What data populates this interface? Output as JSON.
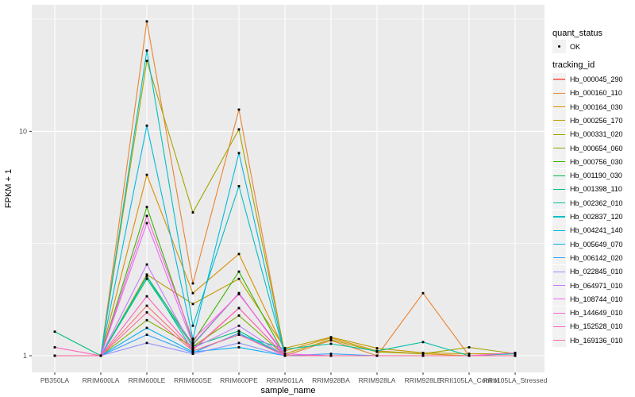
{
  "chart_data": {
    "type": "line",
    "title": "",
    "xlabel": "sample_name",
    "ylabel": "FPKM + 1",
    "y_scale": "log10",
    "ylim": [
      0.85,
      36
    ],
    "y_major_ticks": [
      1,
      10
    ],
    "y_minor_gridlines": [
      3.1623,
      31.623
    ],
    "grid": true,
    "panel_bg": "#EBEBEB",
    "grid_color": "#FFFFFF",
    "tick_label_color": "#4D4D4D",
    "point_color": "#000000",
    "categories": [
      "PB350LA",
      "RRIM600LA",
      "RRIM600LE",
      "RRIM600SE",
      "RRIM600PE",
      "RRIM901LA",
      "RRIM928BA",
      "RRIM928LA",
      "RRIM928LE",
      "RRII105LA_Control",
      "RRII105LA_Stressed"
    ],
    "legend": {
      "quant_status_title": "quant_status",
      "quant_status_items": [
        "OK"
      ],
      "tracking_id_title": "tracking_id"
    },
    "series": [
      {
        "name": "Hb_000045_290",
        "color": "#F8766D",
        "values": [
          1,
          1,
          1.67,
          1.06,
          1.63,
          1,
          1,
          1,
          1,
          1,
          1
        ]
      },
      {
        "name": "Hb_000160_110",
        "color": "#EA8331",
        "values": [
          1,
          1,
          30.9,
          2.1,
          12.5,
          1,
          1.17,
          1,
          1.9,
          1,
          1
        ]
      },
      {
        "name": "Hb_000164_030",
        "color": "#D89000",
        "values": [
          1,
          1,
          6.4,
          1.9,
          2.84,
          1.05,
          1.2,
          1.05,
          1.02,
          1,
          1
        ]
      },
      {
        "name": "Hb_000256_170",
        "color": "#C09B00",
        "values": [
          1,
          1,
          2.3,
          1.7,
          2.2,
          1.08,
          1.21,
          1.08,
          1.03,
          1.02,
          1.02
        ]
      },
      {
        "name": "Hb_000331_020",
        "color": "#A3A500",
        "values": [
          1,
          1,
          20.6,
          4.35,
          10.2,
          1.02,
          1.18,
          1.04,
          1.02,
          1.09,
          1.02
        ]
      },
      {
        "name": "Hb_000654_060",
        "color": "#7CAE00",
        "values": [
          1,
          1,
          1.44,
          1.1,
          1.51,
          1,
          1,
          1,
          1,
          1,
          1
        ]
      },
      {
        "name": "Hb_000756_030",
        "color": "#39B600",
        "values": [
          1,
          1,
          4.6,
          1.15,
          2.37,
          1,
          1,
          1,
          1,
          1,
          1
        ]
      },
      {
        "name": "Hb_001190_030",
        "color": "#00BB4E",
        "values": [
          1,
          1,
          2.26,
          1.12,
          1.9,
          1,
          1,
          1,
          1,
          1,
          1
        ]
      },
      {
        "name": "Hb_001398_110",
        "color": "#00BF7D",
        "values": [
          1.28,
          1,
          2.2,
          1.1,
          1.29,
          1,
          1,
          1,
          1,
          1,
          1
        ]
      },
      {
        "name": "Hb_002362_010",
        "color": "#00C1A3",
        "values": [
          1,
          1,
          2.26,
          1.05,
          1.24,
          1.07,
          1.13,
          1.05,
          1.15,
          1,
          1.02
        ]
      },
      {
        "name": "Hb_002837_120",
        "color": "#00BFC4",
        "values": [
          1,
          1,
          22.9,
          1.36,
          5.7,
          1,
          1,
          1,
          1,
          1,
          1
        ]
      },
      {
        "name": "Hb_004241_140",
        "color": "#00BAE0",
        "values": [
          1,
          1,
          10.6,
          1.19,
          8.0,
          1,
          1,
          1,
          1,
          1,
          1
        ]
      },
      {
        "name": "Hb_005649_070",
        "color": "#00B0F6",
        "values": [
          1,
          1,
          1.33,
          1.04,
          1.09,
          1,
          1,
          1,
          1,
          1,
          1
        ]
      },
      {
        "name": "Hb_006142_020",
        "color": "#35A2FF",
        "values": [
          1,
          1,
          1.24,
          1.03,
          1.26,
          1,
          1.02,
          1,
          1,
          1,
          1
        ]
      },
      {
        "name": "Hb_022845_010",
        "color": "#9590FF",
        "values": [
          1,
          1,
          1.14,
          1.02,
          1.14,
          1,
          1,
          1,
          1,
          1,
          1
        ]
      },
      {
        "name": "Hb_064971_010",
        "color": "#C77CFF",
        "values": [
          1,
          1,
          2.55,
          1.08,
          1.36,
          1,
          1,
          1,
          1,
          1,
          1
        ]
      },
      {
        "name": "Hb_108744_010",
        "color": "#E76BF3",
        "values": [
          1,
          1,
          3.9,
          1.13,
          1.9,
          1,
          1,
          1,
          1,
          1,
          1
        ]
      },
      {
        "name": "Hb_144649_010",
        "color": "#FA62DB",
        "values": [
          1,
          1,
          4.2,
          1.18,
          1.88,
          1.02,
          1,
          1,
          1,
          1,
          1.03
        ]
      },
      {
        "name": "Hb_152528_010",
        "color": "#FF62BC",
        "values": [
          1.09,
          1,
          1.84,
          1.07,
          1.63,
          1,
          1,
          1,
          1,
          1,
          1
        ]
      },
      {
        "name": "Hb_169136_010",
        "color": "#FF6A98",
        "values": [
          1,
          1,
          1.56,
          1.05,
          1.24,
          1,
          1,
          1,
          1,
          1,
          1
        ]
      }
    ]
  }
}
